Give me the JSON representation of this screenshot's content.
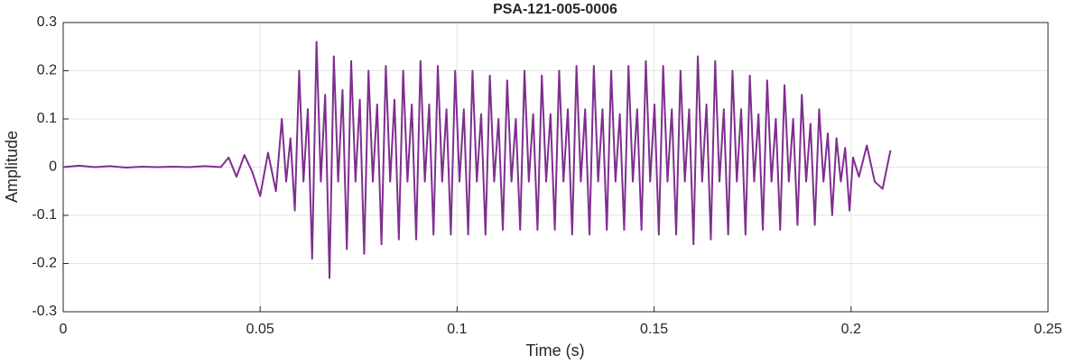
{
  "chart_data": {
    "type": "line",
    "title": "PSA-121-005-0006",
    "xlabel": "Time (s)",
    "ylabel": "Amplitude",
    "color": "#7e2f8e",
    "grid": true,
    "xlim": [
      0,
      0.25
    ],
    "xticks": [
      0,
      0.05,
      0.1,
      0.15,
      0.2,
      0.25
    ],
    "ylim": [
      -0.3,
      0.3
    ],
    "yticks": [
      -0.3,
      -0.2,
      -0.1,
      0,
      0.1,
      0.2,
      0.3
    ],
    "x": [
      0,
      0.004,
      0.008,
      0.012,
      0.016,
      0.02,
      0.024,
      0.028,
      0.032,
      0.036,
      0.04,
      0.042,
      0.044,
      0.046,
      0.048,
      0.05,
      0.052,
      0.054,
      0.0555,
      0.0566,
      0.0577,
      0.0588,
      0.0599,
      0.061,
      0.0621,
      0.0632,
      0.0643,
      0.0654,
      0.0665,
      0.0676,
      0.0687,
      0.0698,
      0.0709,
      0.072,
      0.0731,
      0.0742,
      0.0753,
      0.0764,
      0.0775,
      0.0786,
      0.0797,
      0.0808,
      0.0819,
      0.083,
      0.0841,
      0.0852,
      0.0863,
      0.0874,
      0.0885,
      0.0896,
      0.0907,
      0.0918,
      0.0929,
      0.094,
      0.0951,
      0.0962,
      0.0973,
      0.0984,
      0.0995,
      0.1006,
      0.1017,
      0.1028,
      0.1039,
      0.105,
      0.1061,
      0.1072,
      0.1083,
      0.1094,
      0.1105,
      0.1116,
      0.1127,
      0.1138,
      0.1149,
      0.116,
      0.1171,
      0.1182,
      0.1193,
      0.1204,
      0.1215,
      0.1226,
      0.1237,
      0.1248,
      0.1259,
      0.127,
      0.1281,
      0.1292,
      0.1303,
      0.1314,
      0.1325,
      0.1336,
      0.1347,
      0.1358,
      0.1369,
      0.138,
      0.1391,
      0.1402,
      0.1413,
      0.1424,
      0.1435,
      0.1446,
      0.1457,
      0.1468,
      0.1479,
      0.149,
      0.1501,
      0.1512,
      0.1523,
      0.1534,
      0.1545,
      0.1556,
      0.1567,
      0.1578,
      0.1589,
      0.16,
      0.1611,
      0.1622,
      0.1633,
      0.1644,
      0.1655,
      0.1666,
      0.1677,
      0.1688,
      0.1699,
      0.171,
      0.1721,
      0.1732,
      0.1743,
      0.1754,
      0.1765,
      0.1776,
      0.1787,
      0.1798,
      0.1809,
      0.182,
      0.1831,
      0.1842,
      0.1853,
      0.1864,
      0.1875,
      0.1886,
      0.1897,
      0.1908,
      0.1919,
      0.193,
      0.1941,
      0.1952,
      0.1963,
      0.1974,
      0.1985,
      0.1996,
      0.2005,
      0.202,
      0.204,
      0.206,
      0.208,
      0.21
    ],
    "values": [
      0,
      0.003,
      0,
      0.002,
      -0.001,
      0.001,
      0,
      0.001,
      0,
      0.002,
      0,
      0.02,
      -0.02,
      0.025,
      -0.01,
      -0.06,
      0.03,
      -0.05,
      0.1,
      -0.03,
      0.06,
      -0.09,
      0.2,
      -0.03,
      0.12,
      -0.19,
      0.26,
      -0.03,
      0.15,
      -0.23,
      0.23,
      -0.03,
      0.16,
      -0.17,
      0.22,
      -0.03,
      0.14,
      -0.18,
      0.2,
      -0.03,
      0.13,
      -0.16,
      0.21,
      -0.03,
      0.14,
      -0.15,
      0.2,
      -0.03,
      0.13,
      -0.15,
      0.22,
      -0.03,
      0.13,
      -0.14,
      0.21,
      -0.03,
      0.12,
      -0.14,
      0.2,
      -0.03,
      0.12,
      -0.14,
      0.2,
      -0.03,
      0.11,
      -0.14,
      0.19,
      -0.03,
      0.1,
      -0.13,
      0.18,
      -0.03,
      0.1,
      -0.13,
      0.2,
      -0.03,
      0.11,
      -0.13,
      0.19,
      -0.03,
      0.11,
      -0.13,
      0.2,
      -0.03,
      0.12,
      -0.14,
      0.21,
      -0.03,
      0.12,
      -0.14,
      0.21,
      -0.03,
      0.12,
      -0.13,
      0.2,
      -0.03,
      0.11,
      -0.13,
      0.21,
      -0.03,
      0.12,
      -0.13,
      0.22,
      -0.03,
      0.13,
      -0.14,
      0.21,
      -0.03,
      0.12,
      -0.14,
      0.2,
      -0.03,
      0.12,
      -0.16,
      0.23,
      -0.03,
      0.13,
      -0.15,
      0.22,
      -0.03,
      0.12,
      -0.14,
      0.2,
      -0.03,
      0.12,
      -0.14,
      0.19,
      -0.03,
      0.11,
      -0.13,
      0.18,
      -0.03,
      0.1,
      -0.13,
      0.17,
      -0.03,
      0.1,
      -0.12,
      0.15,
      -0.03,
      0.09,
      -0.12,
      0.12,
      -0.03,
      0.07,
      -0.1,
      0.06,
      -0.03,
      0.04,
      -0.09,
      0.02,
      -0.02,
      0.045,
      -0.03,
      -0.045,
      0.035
    ]
  }
}
